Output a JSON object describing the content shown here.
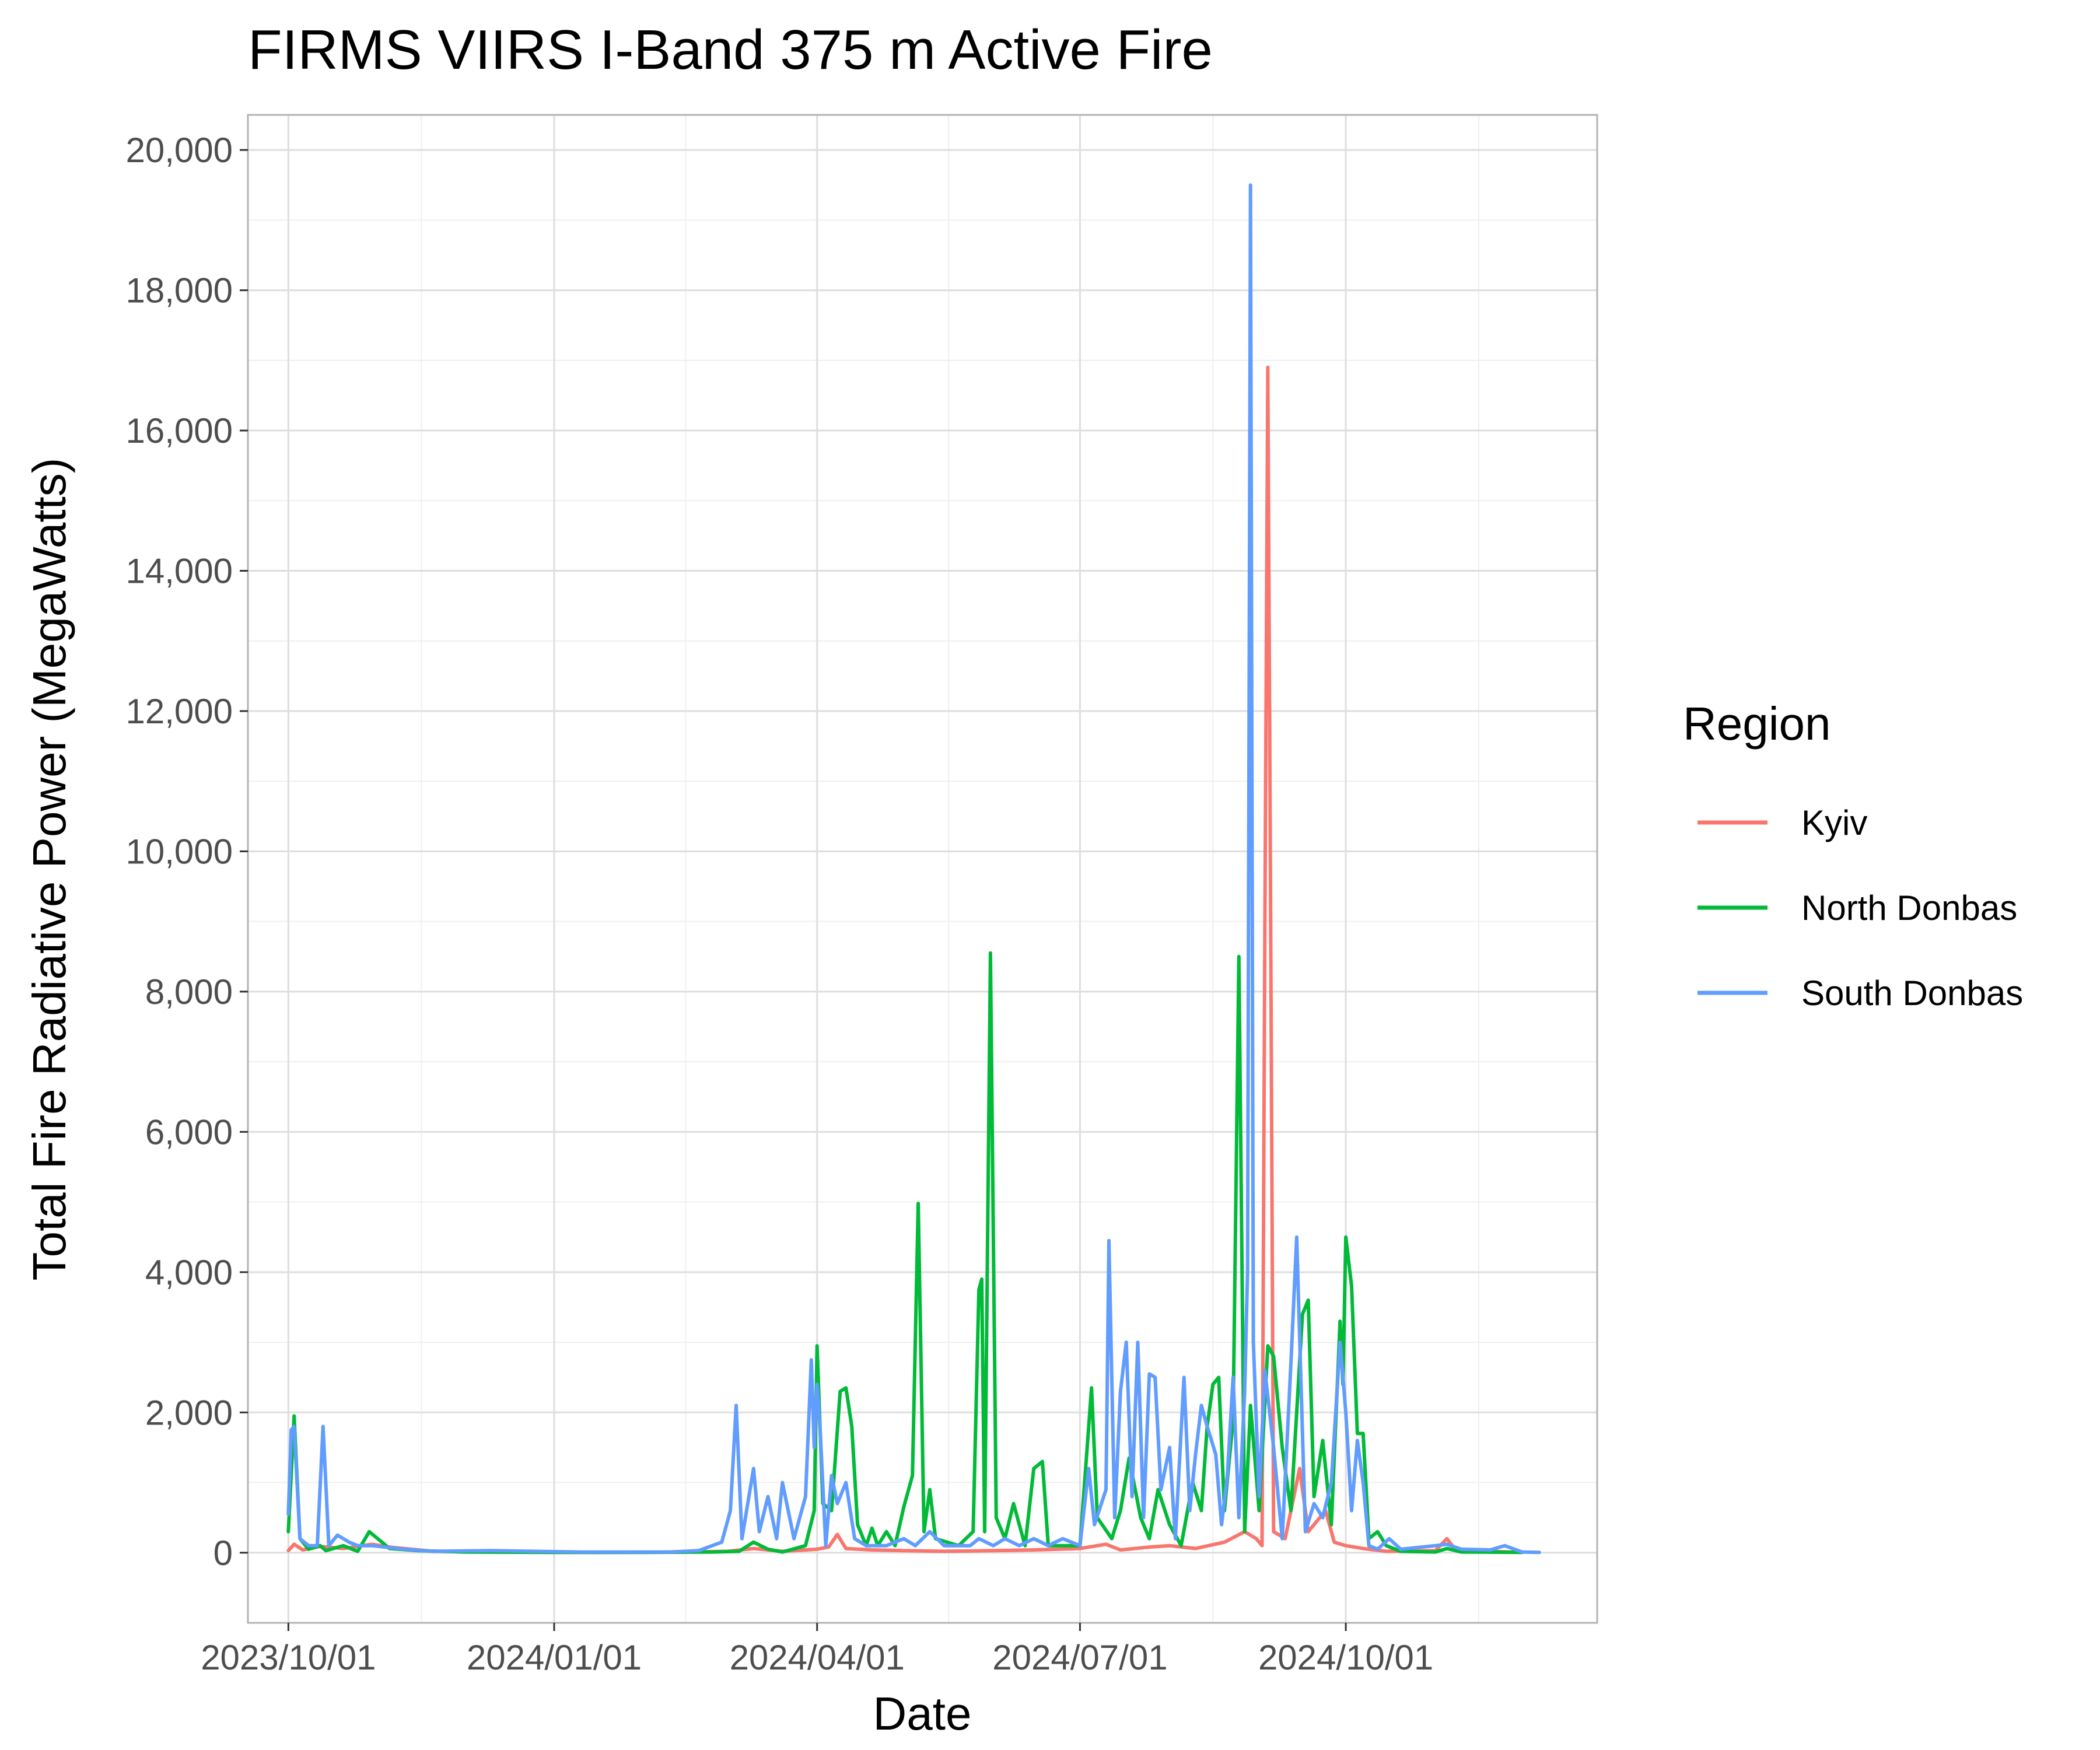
{
  "chart_data": {
    "type": "line",
    "title": "FIRMS VIIRS I-Band 375 m Active Fire",
    "xlabel": "Date",
    "ylabel": "Total Fire Radiative Power (MegaWatts)",
    "x_type": "date",
    "xlim": [
      "2023-09-17",
      "2024-12-27"
    ],
    "ylim": [
      -1000,
      20500
    ],
    "xticks": [
      {
        "date": "2023-10-01",
        "label": "2023/10/01"
      },
      {
        "date": "2024-01-01",
        "label": "2024/01/01"
      },
      {
        "date": "2024-04-01",
        "label": "2024/04/01"
      },
      {
        "date": "2024-07-01",
        "label": "2024/07/01"
      },
      {
        "date": "2024-10-01",
        "label": "2024/10/01"
      }
    ],
    "yticks": [
      0,
      2000,
      4000,
      6000,
      8000,
      10000,
      12000,
      14000,
      16000,
      18000,
      20000
    ],
    "ytick_labels": [
      "0",
      "2,000",
      "4,000",
      "6,000",
      "8,000",
      "10,000",
      "12,000",
      "14,000",
      "16,000",
      "18,000",
      "20,000"
    ],
    "grid": true,
    "legend": {
      "title": "Region",
      "position": "right"
    },
    "series": [
      {
        "name": "Kyiv",
        "color": "#F8766D",
        "points": [
          [
            "2023-10-01",
            30
          ],
          [
            "2023-10-03",
            120
          ],
          [
            "2023-10-06",
            40
          ],
          [
            "2023-10-12",
            90
          ],
          [
            "2023-10-20",
            60
          ],
          [
            "2023-10-30",
            120
          ],
          [
            "2023-11-05",
            80
          ],
          [
            "2023-11-10",
            60
          ],
          [
            "2023-11-20",
            20
          ],
          [
            "2023-12-10",
            10
          ],
          [
            "2024-01-15",
            5
          ],
          [
            "2024-02-15",
            10
          ],
          [
            "2024-03-01",
            20
          ],
          [
            "2024-03-10",
            60
          ],
          [
            "2024-03-15",
            40
          ],
          [
            "2024-03-20",
            20
          ],
          [
            "2024-04-01",
            50
          ],
          [
            "2024-04-05",
            80
          ],
          [
            "2024-04-08",
            260
          ],
          [
            "2024-04-11",
            60
          ],
          [
            "2024-04-20",
            40
          ],
          [
            "2024-05-01",
            30
          ],
          [
            "2024-05-15",
            20
          ],
          [
            "2024-06-01",
            30
          ],
          [
            "2024-06-15",
            40
          ],
          [
            "2024-07-01",
            60
          ],
          [
            "2024-07-10",
            120
          ],
          [
            "2024-07-15",
            40
          ],
          [
            "2024-07-25",
            80
          ],
          [
            "2024-08-01",
            100
          ],
          [
            "2024-08-10",
            60
          ],
          [
            "2024-08-20",
            150
          ],
          [
            "2024-08-27",
            300
          ],
          [
            "2024-08-31",
            200
          ],
          [
            "2024-09-02",
            100
          ],
          [
            "2024-09-03",
            9000
          ],
          [
            "2024-09-04",
            16900
          ],
          [
            "2024-09-05",
            9000
          ],
          [
            "2024-09-06",
            300
          ],
          [
            "2024-09-10",
            200
          ],
          [
            "2024-09-15",
            1200
          ],
          [
            "2024-09-18",
            300
          ],
          [
            "2024-09-24",
            600
          ],
          [
            "2024-09-27",
            150
          ],
          [
            "2024-10-01",
            100
          ],
          [
            "2024-10-07",
            60
          ],
          [
            "2024-10-15",
            20
          ],
          [
            "2024-11-01",
            30
          ],
          [
            "2024-11-05",
            200
          ],
          [
            "2024-11-08",
            40
          ],
          [
            "2024-11-20",
            20
          ],
          [
            "2024-12-01",
            5
          ]
        ]
      },
      {
        "name": "North Donbas",
        "color": "#00BA38",
        "points": [
          [
            "2023-10-01",
            300
          ],
          [
            "2023-10-03",
            1950
          ],
          [
            "2023-10-05",
            200
          ],
          [
            "2023-10-08",
            50
          ],
          [
            "2023-10-12",
            100
          ],
          [
            "2023-10-14",
            30
          ],
          [
            "2023-10-20",
            100
          ],
          [
            "2023-10-25",
            20
          ],
          [
            "2023-10-29",
            300
          ],
          [
            "2023-11-05",
            60
          ],
          [
            "2023-11-15",
            30
          ],
          [
            "2023-12-01",
            10
          ],
          [
            "2024-01-01",
            5
          ],
          [
            "2024-02-01",
            5
          ],
          [
            "2024-02-25",
            10
          ],
          [
            "2024-03-05",
            20
          ],
          [
            "2024-03-10",
            150
          ],
          [
            "2024-03-15",
            50
          ],
          [
            "2024-03-20",
            10
          ],
          [
            "2024-03-28",
            100
          ],
          [
            "2024-03-31",
            600
          ],
          [
            "2024-04-01",
            2950
          ],
          [
            "2024-04-03",
            700
          ],
          [
            "2024-04-06",
            600
          ],
          [
            "2024-04-09",
            2300
          ],
          [
            "2024-04-11",
            2350
          ],
          [
            "2024-04-13",
            1800
          ],
          [
            "2024-04-15",
            400
          ],
          [
            "2024-04-18",
            100
          ],
          [
            "2024-04-20",
            350
          ],
          [
            "2024-04-22",
            100
          ],
          [
            "2024-04-25",
            300
          ],
          [
            "2024-04-28",
            100
          ],
          [
            "2024-05-01",
            650
          ],
          [
            "2024-05-04",
            1100
          ],
          [
            "2024-05-06",
            4980
          ],
          [
            "2024-05-08",
            300
          ],
          [
            "2024-05-10",
            900
          ],
          [
            "2024-05-12",
            200
          ],
          [
            "2024-05-20",
            100
          ],
          [
            "2024-05-25",
            300
          ],
          [
            "2024-05-27",
            3750
          ],
          [
            "2024-05-28",
            3900
          ],
          [
            "2024-05-29",
            300
          ],
          [
            "2024-05-31",
            8550
          ],
          [
            "2024-06-02",
            500
          ],
          [
            "2024-06-05",
            200
          ],
          [
            "2024-06-08",
            700
          ],
          [
            "2024-06-12",
            100
          ],
          [
            "2024-06-15",
            1200
          ],
          [
            "2024-06-18",
            1300
          ],
          [
            "2024-06-20",
            100
          ],
          [
            "2024-06-25",
            100
          ],
          [
            "2024-07-01",
            100
          ],
          [
            "2024-07-05",
            2350
          ],
          [
            "2024-07-07",
            500
          ],
          [
            "2024-07-12",
            200
          ],
          [
            "2024-07-15",
            600
          ],
          [
            "2024-07-18",
            1350
          ],
          [
            "2024-07-22",
            500
          ],
          [
            "2024-07-25",
            200
          ],
          [
            "2024-07-28",
            900
          ],
          [
            "2024-08-01",
            400
          ],
          [
            "2024-08-05",
            100
          ],
          [
            "2024-08-09",
            1000
          ],
          [
            "2024-08-12",
            600
          ],
          [
            "2024-08-14",
            1800
          ],
          [
            "2024-08-16",
            2400
          ],
          [
            "2024-08-18",
            2500
          ],
          [
            "2024-08-20",
            600
          ],
          [
            "2024-08-23",
            1900
          ],
          [
            "2024-08-25",
            8500
          ],
          [
            "2024-08-27",
            300
          ],
          [
            "2024-08-29",
            2100
          ],
          [
            "2024-09-01",
            600
          ],
          [
            "2024-09-04",
            2950
          ],
          [
            "2024-09-06",
            2800
          ],
          [
            "2024-09-09",
            1500
          ],
          [
            "2024-09-12",
            600
          ],
          [
            "2024-09-16",
            3400
          ],
          [
            "2024-09-18",
            3600
          ],
          [
            "2024-09-20",
            800
          ],
          [
            "2024-09-23",
            1600
          ],
          [
            "2024-09-26",
            400
          ],
          [
            "2024-09-29",
            3300
          ],
          [
            "2024-09-30",
            2400
          ],
          [
            "2024-10-01",
            4500
          ],
          [
            "2024-10-03",
            3800
          ],
          [
            "2024-10-05",
            1700
          ],
          [
            "2024-10-07",
            1700
          ],
          [
            "2024-10-09",
            200
          ],
          [
            "2024-10-12",
            300
          ],
          [
            "2024-10-15",
            100
          ],
          [
            "2024-10-20",
            20
          ],
          [
            "2024-11-01",
            10
          ],
          [
            "2024-11-05",
            60
          ],
          [
            "2024-11-10",
            10
          ],
          [
            "2024-12-01",
            5
          ]
        ]
      },
      {
        "name": "South Donbas",
        "color": "#619CFF",
        "points": [
          [
            "2023-10-01",
            550
          ],
          [
            "2023-10-02",
            1750
          ],
          [
            "2023-10-03",
            1800
          ],
          [
            "2023-10-05",
            200
          ],
          [
            "2023-10-08",
            100
          ],
          [
            "2023-10-11",
            100
          ],
          [
            "2023-10-13",
            1800
          ],
          [
            "2023-10-15",
            100
          ],
          [
            "2023-10-18",
            250
          ],
          [
            "2023-10-22",
            150
          ],
          [
            "2023-10-25",
            100
          ],
          [
            "2023-10-30",
            100
          ],
          [
            "2023-11-10",
            50
          ],
          [
            "2023-11-20",
            20
          ],
          [
            "2023-12-10",
            30
          ],
          [
            "2024-01-10",
            10
          ],
          [
            "2024-02-10",
            10
          ],
          [
            "2024-02-20",
            30
          ],
          [
            "2024-02-28",
            150
          ],
          [
            "2024-03-02",
            600
          ],
          [
            "2024-03-04",
            2100
          ],
          [
            "2024-03-06",
            200
          ],
          [
            "2024-03-10",
            1200
          ],
          [
            "2024-03-12",
            300
          ],
          [
            "2024-03-15",
            800
          ],
          [
            "2024-03-18",
            200
          ],
          [
            "2024-03-20",
            1000
          ],
          [
            "2024-03-24",
            200
          ],
          [
            "2024-03-28",
            800
          ],
          [
            "2024-03-30",
            2750
          ],
          [
            "2024-03-31",
            1500
          ],
          [
            "2024-04-01",
            2400
          ],
          [
            "2024-04-02",
            1800
          ],
          [
            "2024-04-04",
            100
          ],
          [
            "2024-04-06",
            1100
          ],
          [
            "2024-04-08",
            700
          ],
          [
            "2024-04-11",
            1000
          ],
          [
            "2024-04-14",
            200
          ],
          [
            "2024-04-18",
            100
          ],
          [
            "2024-04-25",
            100
          ],
          [
            "2024-05-01",
            200
          ],
          [
            "2024-05-05",
            100
          ],
          [
            "2024-05-10",
            300
          ],
          [
            "2024-05-15",
            100
          ],
          [
            "2024-05-24",
            100
          ],
          [
            "2024-05-27",
            200
          ],
          [
            "2024-06-01",
            100
          ],
          [
            "2024-06-05",
            200
          ],
          [
            "2024-06-10",
            100
          ],
          [
            "2024-06-15",
            200
          ],
          [
            "2024-06-20",
            100
          ],
          [
            "2024-06-25",
            200
          ],
          [
            "2024-07-01",
            100
          ],
          [
            "2024-07-04",
            1200
          ],
          [
            "2024-07-06",
            400
          ],
          [
            "2024-07-10",
            900
          ],
          [
            "2024-07-11",
            4450
          ],
          [
            "2024-07-13",
            500
          ],
          [
            "2024-07-15",
            2300
          ],
          [
            "2024-07-17",
            3000
          ],
          [
            "2024-07-19",
            800
          ],
          [
            "2024-07-21",
            3000
          ],
          [
            "2024-07-23",
            500
          ],
          [
            "2024-07-25",
            2550
          ],
          [
            "2024-07-27",
            2500
          ],
          [
            "2024-07-29",
            900
          ],
          [
            "2024-08-01",
            1500
          ],
          [
            "2024-08-03",
            200
          ],
          [
            "2024-08-06",
            2500
          ],
          [
            "2024-08-08",
            600
          ],
          [
            "2024-08-10",
            1400
          ],
          [
            "2024-08-12",
            2100
          ],
          [
            "2024-08-14",
            1800
          ],
          [
            "2024-08-17",
            1400
          ],
          [
            "2024-08-19",
            400
          ],
          [
            "2024-08-21",
            1100
          ],
          [
            "2024-08-23",
            2500
          ],
          [
            "2024-08-25",
            500
          ],
          [
            "2024-08-27",
            2300
          ],
          [
            "2024-08-28",
            4000
          ],
          [
            "2024-08-29",
            19500
          ],
          [
            "2024-08-30",
            3000
          ],
          [
            "2024-09-01",
            800
          ],
          [
            "2024-09-03",
            2600
          ],
          [
            "2024-09-06",
            1500
          ],
          [
            "2024-09-09",
            200
          ],
          [
            "2024-09-12",
            2700
          ],
          [
            "2024-09-14",
            4500
          ],
          [
            "2024-09-17",
            300
          ],
          [
            "2024-09-20",
            700
          ],
          [
            "2024-09-23",
            500
          ],
          [
            "2024-09-26",
            1000
          ],
          [
            "2024-09-29",
            3000
          ],
          [
            "2024-10-01",
            2000
          ],
          [
            "2024-10-03",
            600
          ],
          [
            "2024-10-05",
            1600
          ],
          [
            "2024-10-07",
            1000
          ],
          [
            "2024-10-09",
            100
          ],
          [
            "2024-10-12",
            50
          ],
          [
            "2024-10-16",
            200
          ],
          [
            "2024-10-20",
            50
          ],
          [
            "2024-11-01",
            100
          ],
          [
            "2024-11-05",
            120
          ],
          [
            "2024-11-10",
            50
          ],
          [
            "2024-11-20",
            40
          ],
          [
            "2024-11-25",
            100
          ],
          [
            "2024-12-01",
            10
          ],
          [
            "2024-12-07",
            5
          ]
        ]
      }
    ]
  }
}
